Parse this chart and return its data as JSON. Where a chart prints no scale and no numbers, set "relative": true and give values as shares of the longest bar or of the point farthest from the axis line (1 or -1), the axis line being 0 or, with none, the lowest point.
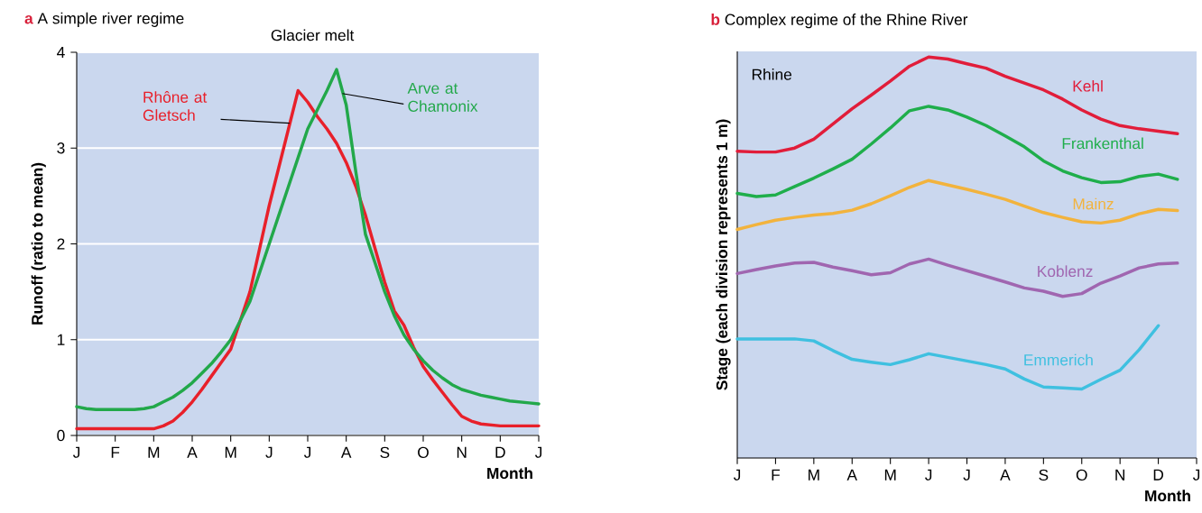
{
  "chart_data": [
    {
      "type": "line",
      "title": "A simple river regime",
      "xlabel": "Month",
      "ylabel": "Runoff (ratio to mean)",
      "annotations": [
        "a",
        "Glacier melt"
      ],
      "categories": [
        "J",
        null,
        null,
        null,
        "F",
        null,
        null,
        null,
        "M",
        null,
        null,
        null,
        "A",
        null,
        null,
        null,
        "M",
        null,
        null,
        null,
        "J",
        null,
        null,
        null,
        "J",
        null,
        null,
        null,
        "A",
        null,
        null,
        null,
        "S",
        null,
        null,
        null,
        "O",
        null,
        null,
        null,
        "N",
        null,
        null,
        null,
        "D",
        null,
        null,
        null,
        "J"
      ],
      "ylim": [
        0,
        4
      ],
      "yticks": [
        0,
        1,
        2,
        3,
        4
      ],
      "grid": "y",
      "series": [
        {
          "name": "Rhône at Gletsch",
          "color": "#e8202a",
          "values": [
            0.07,
            0.07,
            0.07,
            0.07,
            0.07,
            0.07,
            0.07,
            0.07,
            0.07,
            0.1,
            0.15,
            0.24,
            0.35,
            0.48,
            0.62,
            0.76,
            0.9,
            1.2,
            1.5,
            1.95,
            2.4,
            2.8,
            3.2,
            3.6,
            3.48,
            3.33,
            3.2,
            3.05,
            2.85,
            2.6,
            2.3,
            1.95,
            1.6,
            1.3,
            1.15,
            0.92,
            0.72,
            0.58,
            0.45,
            0.32,
            0.2,
            0.15,
            0.12,
            0.11,
            0.1,
            0.1,
            0.1,
            0.1,
            0.1
          ]
        },
        {
          "name": "Arve at Chamonix",
          "color": "#22a84a",
          "values": [
            0.3,
            0.28,
            0.27,
            0.27,
            0.27,
            0.27,
            0.27,
            0.28,
            0.3,
            0.35,
            0.4,
            0.47,
            0.55,
            0.65,
            0.75,
            0.87,
            1.0,
            1.2,
            1.4,
            1.7,
            2.0,
            2.3,
            2.6,
            2.9,
            3.2,
            3.4,
            3.6,
            3.82,
            3.45,
            2.75,
            2.1,
            1.8,
            1.5,
            1.25,
            1.05,
            0.9,
            0.78,
            0.68,
            0.6,
            0.53,
            0.48,
            0.45,
            0.42,
            0.4,
            0.38,
            0.36,
            0.35,
            0.34,
            0.33
          ]
        }
      ]
    },
    {
      "type": "line",
      "title": "Complex regime of the Rhine River",
      "xlabel": "Month",
      "ylabel": "Stage (each division represents 1 m)",
      "annotations": [
        "b",
        "Rhine"
      ],
      "relative": true,
      "categories": [
        "J",
        null,
        "F",
        null,
        "M",
        null,
        "A",
        null,
        "M",
        null,
        "J",
        null,
        "J",
        null,
        "A",
        null,
        "S",
        null,
        "O",
        null,
        "N",
        null,
        "D",
        null,
        "J"
      ],
      "series": [
        {
          "name": "Kehl",
          "color": "#e11d3a",
          "values": [
            0.765,
            0.763,
            0.763,
            0.773,
            0.795,
            0.833,
            0.871,
            0.905,
            0.94,
            0.977,
            1.0,
            0.995,
            0.983,
            0.972,
            0.952,
            0.935,
            0.918,
            0.895,
            0.868,
            0.845,
            0.829,
            0.821,
            0.815,
            0.809,
            null
          ]
        },
        {
          "name": "Frankenthal",
          "color": "#1fae4b",
          "values": [
            0.66,
            0.652,
            0.656,
            0.677,
            0.698,
            0.721,
            0.745,
            0.783,
            0.823,
            0.866,
            0.877,
            0.868,
            0.85,
            0.829,
            0.803,
            0.776,
            0.741,
            0.716,
            0.699,
            0.687,
            0.689,
            0.702,
            0.708,
            0.695,
            null
          ]
        },
        {
          "name": "Mainz",
          "color": "#f2b33d",
          "values": [
            0.57,
            0.582,
            0.593,
            0.6,
            0.606,
            0.61,
            0.618,
            0.634,
            0.654,
            0.675,
            0.692,
            0.681,
            0.67,
            0.658,
            0.645,
            0.628,
            0.612,
            0.6,
            0.589,
            0.586,
            0.593,
            0.609,
            0.62,
            0.617,
            null
          ]
        },
        {
          "name": "Koblenz",
          "color": "#a066b0",
          "values": [
            0.46,
            0.47,
            0.479,
            0.486,
            0.488,
            0.476,
            0.467,
            0.457,
            0.462,
            0.484,
            0.496,
            0.481,
            0.467,
            0.453,
            0.439,
            0.424,
            0.416,
            0.403,
            0.41,
            0.436,
            0.454,
            0.474,
            0.484,
            0.486,
            null
          ]
        },
        {
          "name": "Emmerich",
          "color": "#3fc0e0",
          "values": [
            0.297,
            0.297,
            0.297,
            0.297,
            0.292,
            0.268,
            0.246,
            0.239,
            0.233,
            0.245,
            0.26,
            0.251,
            0.242,
            0.233,
            0.222,
            0.197,
            0.177,
            0.175,
            0.172,
            0.196,
            0.219,
            0.27,
            0.33,
            null,
            null
          ]
        }
      ]
    }
  ]
}
